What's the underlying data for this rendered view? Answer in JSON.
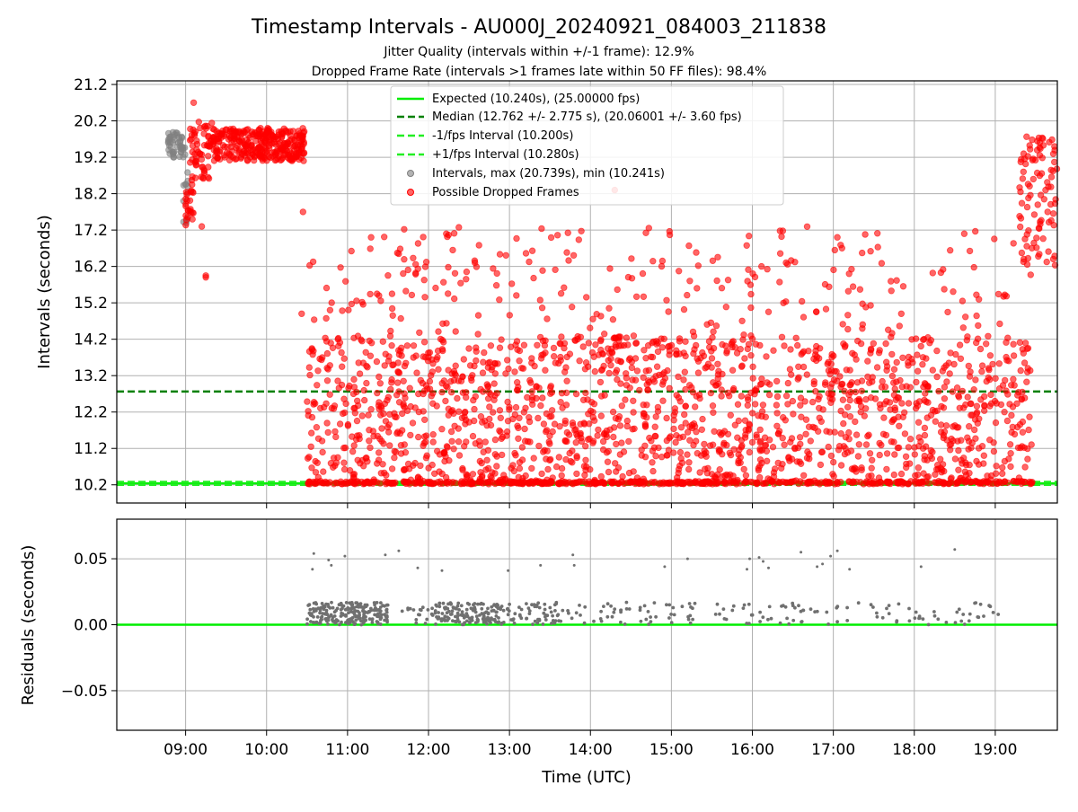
{
  "figure": {
    "title": "Timestamp Intervals - AU000J_20240921_084003_211838",
    "subtitle_1": "Jitter Quality (intervals within +/-1 frame): 12.9%",
    "subtitle_2": "Dropped Frame Rate (intervals >1 frames late within 50 FF files): 98.4%"
  },
  "colors": {
    "expected": "#00ee00",
    "median": "#008000",
    "interval_lines": "#22ee22",
    "intervals": "#808080",
    "dropped": "#ff0000",
    "residuals": "#707070",
    "grid": "#b0b0b0"
  },
  "chart_data": [
    {
      "type": "scatter",
      "ylabel": "Intervals (seconds)",
      "xlim": [
        "08:09",
        "19:46"
      ],
      "ylim": [
        9.7,
        21.3
      ],
      "y_ticks": [
        "10.2",
        "11.2",
        "12.2",
        "13.2",
        "14.2",
        "15.2",
        "16.2",
        "17.2",
        "18.2",
        "19.2",
        "20.2",
        "21.2"
      ],
      "grid": true,
      "legend_position": "top-center",
      "lines": [
        {
          "name": "Expected (10.240s), (25.00000 fps)",
          "y": 10.24,
          "style": "solid"
        },
        {
          "name": "Median (12.762 +/- 2.775 s), (20.06001 +/- 3.60 fps)",
          "y": 12.762,
          "style": "dashed"
        },
        {
          "name": "-1/fps Interval (10.200s)",
          "y": 10.2,
          "style": "dashed"
        },
        {
          "name": "+1/fps Interval (10.280s)",
          "y": 10.28,
          "style": "dashed"
        }
      ],
      "series": [
        {
          "name": "Intervals, max (20.739s), min (10.241s)",
          "max": 20.739,
          "min": 10.241,
          "segments": [
            {
              "start": "08:47",
              "end": "09:00",
              "y_low": 19.2,
              "y_high": 19.9,
              "count": 45
            },
            {
              "start": "08:58",
              "end": "09:02",
              "y_low": 17.3,
              "y_high": 19.1,
              "count": 12
            }
          ]
        },
        {
          "name": "Possible Dropped Frames",
          "segments": [
            {
              "start": "09:00",
              "end": "09:06",
              "y_low": 17.3,
              "y_high": 18.6,
              "count": 25
            },
            {
              "start": "09:03",
              "end": "09:20",
              "y_low": 18.6,
              "y_high": 20.2,
              "count": 60
            },
            {
              "start": "09:20",
              "end": "10:28",
              "y_low": 19.1,
              "y_high": 20.0,
              "count": 330
            },
            {
              "start": "10:30",
              "end": "19:28",
              "y_low": 10.22,
              "y_high": 10.3,
              "count": 520
            },
            {
              "start": "10:30",
              "end": "19:28",
              "y_low": 10.3,
              "y_high": 14.3,
              "count": 1600
            },
            {
              "start": "10:30",
              "end": "19:28",
              "y_low": 14.3,
              "y_high": 17.3,
              "count": 240
            },
            {
              "start": "19:18",
              "end": "19:46",
              "y_low": 16.2,
              "y_high": 19.8,
              "count": 90
            }
          ],
          "outliers": [
            {
              "x": "09:06",
              "y": 20.7
            },
            {
              "x": "09:15",
              "y": 15.95
            },
            {
              "x": "09:15",
              "y": 15.9
            },
            {
              "x": "09:12",
              "y": 17.3
            },
            {
              "x": "10:27",
              "y": 17.7
            },
            {
              "x": "10:26",
              "y": 14.9
            },
            {
              "x": "14:18",
              "y": 18.3
            },
            {
              "x": "11:38",
              "y": 16.55
            },
            {
              "x": "12:18",
              "y": 16.65
            },
            {
              "x": "17:03",
              "y": 17.0
            },
            {
              "x": "18:37",
              "y": 17.1
            }
          ]
        }
      ]
    },
    {
      "type": "scatter",
      "ylabel": "Residuals (seconds)",
      "xlabel": "Time (UTC)",
      "xlim": [
        "08:09",
        "19:46"
      ],
      "x_ticks": [
        "09:00",
        "10:00",
        "11:00",
        "12:00",
        "13:00",
        "14:00",
        "15:00",
        "16:00",
        "17:00",
        "18:00",
        "19:00"
      ],
      "ylim": [
        -0.08,
        0.08
      ],
      "y_ticks": [
        "0.05",
        "0.00",
        "−0.05"
      ],
      "grid": true,
      "lines": [
        {
          "y": 0.0,
          "style": "solid"
        }
      ],
      "series": [
        {
          "segments": [
            {
              "start": "10:30",
              "end": "11:30",
              "y_low": 0.0,
              "y_high": 0.017,
              "count": 220
            },
            {
              "start": "11:30",
              "end": "12:05",
              "y_low": 0.0,
              "y_high": 0.014,
              "count": 18
            },
            {
              "start": "12:05",
              "end": "12:55",
              "y_low": 0.0,
              "y_high": 0.017,
              "count": 150
            },
            {
              "start": "12:55",
              "end": "13:35",
              "y_low": 0.0,
              "y_high": 0.017,
              "count": 55
            },
            {
              "start": "13:35",
              "end": "19:05",
              "y_low": 0.0,
              "y_high": 0.017,
              "count": 150
            }
          ],
          "outliers": [
            {
              "x": "10:35",
              "y": 0.054
            },
            {
              "x": "10:34",
              "y": 0.042
            },
            {
              "x": "10:46",
              "y": 0.049
            },
            {
              "x": "10:48",
              "y": 0.045
            },
            {
              "x": "10:58",
              "y": 0.052
            },
            {
              "x": "11:28",
              "y": 0.053
            },
            {
              "x": "11:38",
              "y": 0.056
            },
            {
              "x": "11:52",
              "y": 0.043
            },
            {
              "x": "12:10",
              "y": 0.041
            },
            {
              "x": "12:59",
              "y": 0.041
            },
            {
              "x": "13:23",
              "y": 0.045
            },
            {
              "x": "13:47",
              "y": 0.053
            },
            {
              "x": "13:48",
              "y": 0.045
            },
            {
              "x": "14:55",
              "y": 0.044
            },
            {
              "x": "15:12",
              "y": 0.05
            },
            {
              "x": "15:56",
              "y": 0.042
            },
            {
              "x": "15:58",
              "y": 0.05
            },
            {
              "x": "16:05",
              "y": 0.051
            },
            {
              "x": "16:08",
              "y": 0.048
            },
            {
              "x": "16:12",
              "y": 0.043
            },
            {
              "x": "16:36",
              "y": 0.055
            },
            {
              "x": "16:48",
              "y": 0.044
            },
            {
              "x": "16:52",
              "y": 0.046
            },
            {
              "x": "16:58",
              "y": 0.052
            },
            {
              "x": "17:03",
              "y": 0.056
            },
            {
              "x": "17:12",
              "y": 0.042
            },
            {
              "x": "18:05",
              "y": 0.044
            },
            {
              "x": "18:30",
              "y": 0.057
            }
          ]
        }
      ]
    }
  ]
}
